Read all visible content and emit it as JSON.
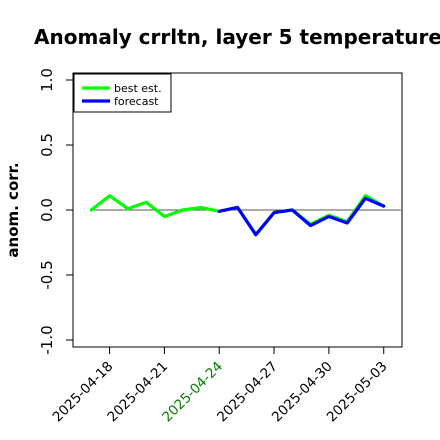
{
  "chart_data": {
    "type": "line",
    "title": "Anomaly crrltn, layer 5 temperature",
    "xlabel": "",
    "ylabel": "anom. corr.",
    "ylim": [
      -1.0,
      1.0
    ],
    "yticks": [
      "-1.0",
      "-0.5",
      "0.0",
      "0.5",
      "1.0"
    ],
    "xlim": [
      "2025-04-16",
      "2025-05-04"
    ],
    "xticks": [
      "2025-04-18",
      "2025-04-21",
      "2025-04-24",
      "2025-04-27",
      "2025-04-30",
      "2025-05-03"
    ],
    "highlight_tick": "2025-04-24",
    "legend_position": "top-left",
    "reference_line": 0.0,
    "colors": {
      "best_est": "#00ff00",
      "forecast": "#0000ff",
      "highlight_tick": "#008000",
      "reference_line": "#555555"
    },
    "series": [
      {
        "name": "best est.",
        "x": [
          "2025-04-17",
          "2025-04-18",
          "2025-04-19",
          "2025-04-20",
          "2025-04-21",
          "2025-04-22",
          "2025-04-23",
          "2025-04-24",
          "2025-04-25",
          "2025-04-26",
          "2025-04-27",
          "2025-04-28",
          "2025-04-29",
          "2025-04-30",
          "2025-05-01",
          "2025-05-02",
          "2025-05-03"
        ],
        "values": [
          0.0,
          0.11,
          0.01,
          0.06,
          -0.05,
          0.0,
          0.02,
          -0.01,
          0.02,
          -0.19,
          -0.02,
          0.0,
          -0.11,
          -0.04,
          -0.09,
          0.11,
          0.03
        ]
      },
      {
        "name": "forecast",
        "x": [
          "2025-04-24",
          "2025-04-25",
          "2025-04-26",
          "2025-04-27",
          "2025-04-28",
          "2025-04-29",
          "2025-04-30",
          "2025-05-01",
          "2025-05-02",
          "2025-05-03"
        ],
        "values": [
          -0.01,
          0.02,
          -0.19,
          -0.02,
          0.0,
          -0.12,
          -0.05,
          -0.1,
          0.09,
          0.03
        ]
      }
    ]
  }
}
